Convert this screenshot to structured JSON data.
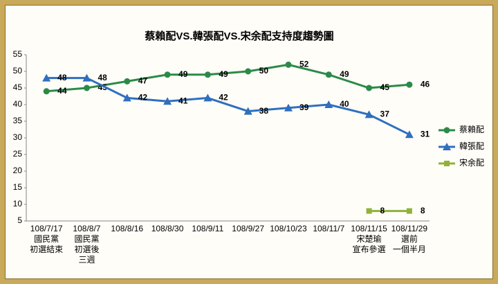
{
  "chart_data": {
    "type": "line",
    "title": "蔡賴配VS.韓張配VS.宋余配支持度趨勢圖",
    "categories": [
      [
        "108/7/17",
        "國民黨",
        "初選結束"
      ],
      [
        "108/8/7",
        "國民黨",
        "初選後",
        "三週"
      ],
      [
        "108/8/16"
      ],
      [
        "108/8/30"
      ],
      [
        "108/9/11"
      ],
      [
        "108/9/27"
      ],
      [
        "108/10/23"
      ],
      [
        "108/11/7"
      ],
      [
        "108/11/15",
        "宋楚瑜",
        "宣布參選"
      ],
      [
        "108/11/29",
        "選前",
        "一個半月"
      ]
    ],
    "series": [
      {
        "name": "蔡賴配",
        "color": "#2b8a48",
        "marker": "circle",
        "values": [
          44,
          45,
          47,
          49,
          49,
          50,
          52,
          49,
          45,
          46
        ]
      },
      {
        "name": "韓張配",
        "color": "#2f6fbf",
        "marker": "triangle",
        "values": [
          48,
          48,
          42,
          41,
          42,
          38,
          39,
          40,
          37,
          31
        ]
      },
      {
        "name": "宋余配",
        "color": "#8db33a",
        "marker": "square",
        "values": [
          null,
          null,
          null,
          null,
          null,
          null,
          null,
          null,
          8,
          8
        ]
      }
    ],
    "ylim": [
      5,
      55
    ],
    "yticks": [
      5,
      10,
      15,
      20,
      25,
      30,
      35,
      40,
      45,
      50,
      55
    ],
    "grid": false,
    "legend": "right"
  }
}
